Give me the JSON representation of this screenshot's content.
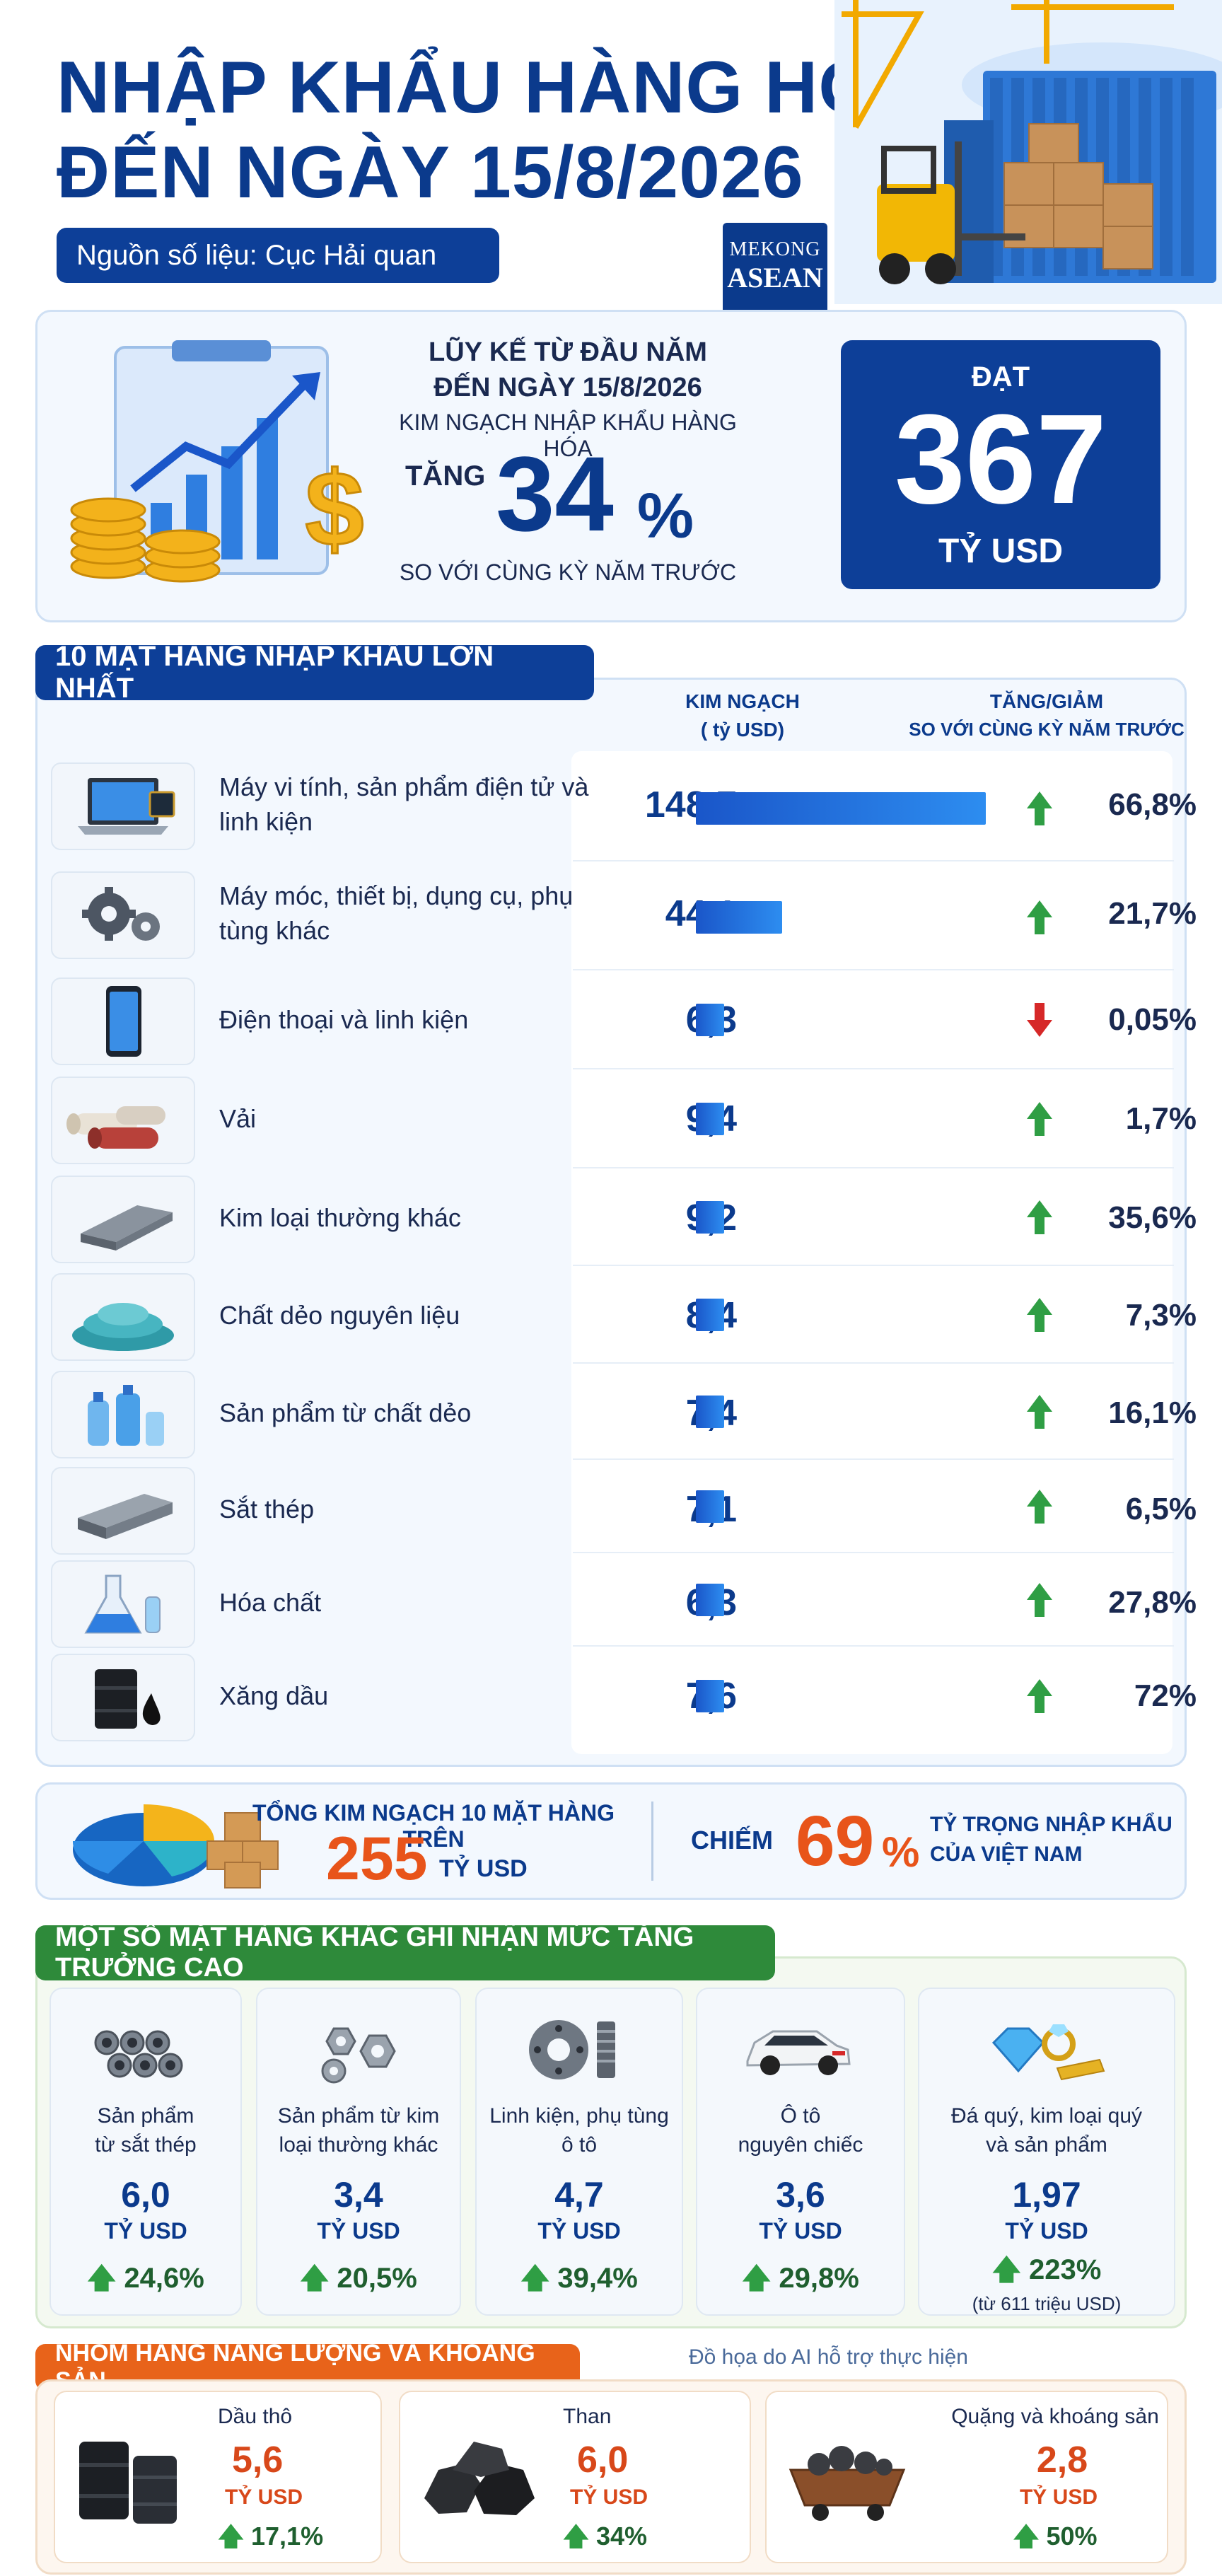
{
  "header": {
    "title_line1": "NHẬP KHẨU HÀNG HÓA",
    "title_line2": "ĐẾN NGÀY 15/8/2026",
    "source": "Nguồn số liệu: Cục Hải quan",
    "logo_line1": "MEKONG",
    "logo_line2": "ASEAN"
  },
  "summary": {
    "line1": "LŨY KẾ TỪ ĐẦU NĂM",
    "line2": "ĐẾN NGÀY 15/8/2026",
    "line3": "KIM NGẠCH NHẬP KHẨU HÀNG HÓA",
    "increase_label": "TĂNG",
    "increase_value": "34",
    "percent_sign": "%",
    "compare": "SO VỚI CÙNG KỲ NĂM TRƯỚC",
    "reach_label": "ĐẠT",
    "reach_value": "367",
    "reach_unit": "TỶ USD"
  },
  "top10": {
    "title": "10 MẶT HÀNG NHẬP KHẨU LỚN NHẤT",
    "col_value_line1": "KIM NGẠCH",
    "col_value_line2": "( tỷ USD)",
    "col_change_line1": "TĂNG/GIẢM",
    "col_change_line2": "SO VỚI CÙNG KỲ NĂM TRƯỚC"
  },
  "chart_data": {
    "type": "bar",
    "categories": [
      "Máy vi tính, sản phẩm điện tử và linh kiện",
      "Máy móc, thiết bị, dụng cụ, phụ tùng khác",
      "Điện thoại và linh kiện",
      "Vải",
      "Kim loại thường khác",
      "Chất dẻo nguyên liệu",
      "Sản phẩm từ chất dẻo",
      "Sắt thép",
      "Hóa chất",
      "Xăng dầu"
    ],
    "values": [
      148.7,
      44.1,
      6.3,
      9.4,
      9.2,
      8.4,
      7.4,
      7.1,
      6.3,
      7.6
    ],
    "value_labels": [
      "148,7",
      "44,1",
      "6,3",
      "9,4",
      "9,2",
      "8,4",
      "7,4",
      "7,1",
      "6,3",
      "7,6"
    ],
    "change_labels": [
      "66,8%",
      "21,7%",
      "0,05%",
      "1,7%",
      "35,6%",
      "7,3%",
      "16,1%",
      "6,5%",
      "27,8%",
      "72%"
    ],
    "change_direction": [
      "up",
      "up",
      "down",
      "up",
      "up",
      "up",
      "up",
      "up",
      "up",
      "up"
    ],
    "icons": [
      "laptop-icon",
      "gears-icon",
      "phone-icon",
      "fabric-rolls-icon",
      "metal-beam-icon",
      "plastic-pellets-icon",
      "plastic-bottles-icon",
      "steel-beams-icon",
      "chemical-flask-icon",
      "oil-barrel-icon"
    ],
    "xlim": [
      0,
      148.7
    ],
    "bar_color": "#1f66d6",
    "up_color": "#2f9e44",
    "down_color": "#d62828"
  },
  "total": {
    "label": "TỔNG KIM NGẠCH 10 MẶT HÀNG TRÊN",
    "value": "255",
    "unit": "TỶ USD",
    "share_label": "CHIẾM",
    "share_value": "69",
    "share_pct": "%",
    "share_desc_line1": "TỶ TRỌNG NHẬP KHẨU",
    "share_desc_line2": "CỦA VIỆT NAM"
  },
  "other": {
    "title": "MỘT SỐ MẶT HÀNG KHÁC GHI NHẬN MỨC TĂNG TRƯỞNG CAO",
    "items": [
      {
        "name1": "Sản phẩm",
        "name2": "từ sắt thép",
        "value": "6,0",
        "unit": "TỶ USD",
        "growth": "24,6%",
        "icon": "steel-pipes-icon"
      },
      {
        "name1": "Sản phẩm từ kim",
        "name2": "loại thường khác",
        "value": "3,4",
        "unit": "TỶ USD",
        "growth": "20,5%",
        "icon": "metal-nuts-icon"
      },
      {
        "name1": "Linh kiện, phụ tùng",
        "name2": "ô tô",
        "value": "4,7",
        "unit": "TỶ USD",
        "growth": "39,4%",
        "icon": "auto-parts-icon"
      },
      {
        "name1": "Ô tô",
        "name2": "nguyên chiếc",
        "value": "3,6",
        "unit": "TỶ USD",
        "growth": "29,8%",
        "icon": "car-icon"
      },
      {
        "name1": "Đá quý, kim loại quý",
        "name2": "và sản phẩm",
        "value": "1,97",
        "unit": "TỶ USD",
        "growth": "223%",
        "note": "(từ 611 triệu USD)",
        "icon": "gems-icon"
      }
    ]
  },
  "energy": {
    "title": "NHÓM HÀNG NĂNG LƯỢNG VÀ KHOÁNG SẢN",
    "ai_note": "Đồ họa do AI hỗ trợ thực hiện",
    "items": [
      {
        "name": "Dầu thô",
        "value": "5,6",
        "unit": "TỶ USD",
        "growth": "17,1%",
        "icon": "oil-barrels-icon"
      },
      {
        "name": "Than",
        "value": "6,0",
        "unit": "TỶ USD",
        "growth": "34%",
        "icon": "coal-icon"
      },
      {
        "name": "Quặng và khoáng sản",
        "value": "2,8",
        "unit": "TỶ USD",
        "growth": "50%",
        "icon": "ore-cart-icon"
      }
    ]
  },
  "colors": {
    "navy": "#0b3a8c",
    "accent_blue": "#1f66d6",
    "orange": "#e8541a",
    "green": "#2b8a3e"
  }
}
